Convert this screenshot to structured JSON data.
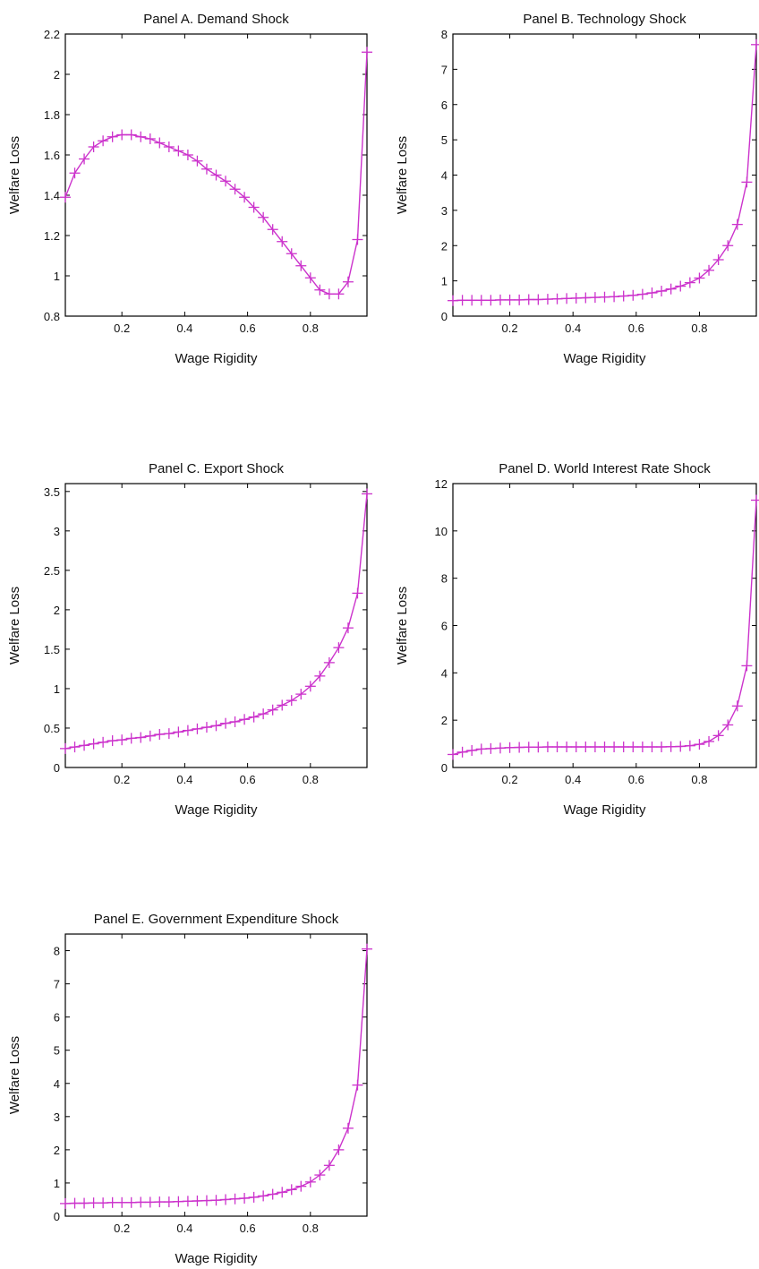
{
  "chart_data": [
    {
      "type": "line",
      "title": "Panel A. Demand Shock",
      "xlabel": "Wage Rigidity",
      "ylabel": "Welfare Loss",
      "xlim": [
        0.02,
        0.98
      ],
      "ylim": [
        0.8,
        2.2
      ],
      "xticks": [
        "0.2",
        "0.4",
        "0.6",
        "0.8"
      ],
      "yticks": [
        "0.8",
        "1",
        "1.2",
        "1.4",
        "1.6",
        "1.8",
        "2",
        "2.2"
      ],
      "grid": false,
      "marker": "plus",
      "color": "#cc33cc",
      "series": [
        {
          "x": [
            0.02,
            0.05,
            0.08,
            0.11,
            0.14,
            0.17,
            0.2,
            0.23,
            0.26,
            0.29,
            0.32,
            0.35,
            0.38,
            0.41,
            0.44,
            0.47,
            0.5,
            0.53,
            0.56,
            0.59,
            0.62,
            0.65,
            0.68,
            0.71,
            0.74,
            0.77,
            0.8,
            0.83,
            0.86,
            0.89,
            0.92,
            0.95,
            0.98
          ],
          "values": [
            1.39,
            1.51,
            1.58,
            1.64,
            1.67,
            1.69,
            1.7,
            1.7,
            1.69,
            1.68,
            1.66,
            1.64,
            1.62,
            1.6,
            1.57,
            1.53,
            1.5,
            1.47,
            1.43,
            1.39,
            1.34,
            1.29,
            1.23,
            1.17,
            1.11,
            1.05,
            0.99,
            0.93,
            0.91,
            0.91,
            0.97,
            1.18,
            2.11
          ]
        }
      ]
    },
    {
      "type": "line",
      "title": "Panel B. Technology Shock",
      "xlabel": "Wage Rigidity",
      "ylabel": "Welfare Loss",
      "xlim": [
        0.02,
        0.98
      ],
      "ylim": [
        0,
        8
      ],
      "xticks": [
        "0.2",
        "0.4",
        "0.6",
        "0.8"
      ],
      "yticks": [
        "0",
        "1",
        "2",
        "3",
        "4",
        "5",
        "6",
        "7",
        "8"
      ],
      "grid": false,
      "marker": "plus",
      "color": "#cc33cc",
      "series": [
        {
          "x": [
            0.02,
            0.05,
            0.08,
            0.11,
            0.14,
            0.17,
            0.2,
            0.23,
            0.26,
            0.29,
            0.32,
            0.35,
            0.38,
            0.41,
            0.44,
            0.47,
            0.5,
            0.53,
            0.56,
            0.59,
            0.62,
            0.65,
            0.68,
            0.71,
            0.74,
            0.77,
            0.8,
            0.83,
            0.86,
            0.89,
            0.92,
            0.95,
            0.98
          ],
          "values": [
            0.44,
            0.45,
            0.45,
            0.45,
            0.45,
            0.46,
            0.46,
            0.46,
            0.47,
            0.47,
            0.48,
            0.49,
            0.5,
            0.51,
            0.52,
            0.53,
            0.54,
            0.55,
            0.57,
            0.59,
            0.62,
            0.66,
            0.71,
            0.77,
            0.85,
            0.95,
            1.08,
            1.3,
            1.6,
            2.0,
            2.6,
            3.8,
            7.7
          ]
        }
      ]
    },
    {
      "type": "line",
      "title": "Panel C. Export Shock",
      "xlabel": "Wage Rigidity",
      "ylabel": "Welfare Loss",
      "xlim": [
        0.02,
        0.98
      ],
      "ylim": [
        0,
        3.6
      ],
      "xticks": [
        "0.2",
        "0.4",
        "0.6",
        "0.8"
      ],
      "yticks": [
        "0",
        "0.5",
        "1",
        "1.5",
        "2",
        "2.5",
        "3",
        "3.5"
      ],
      "grid": false,
      "marker": "plus",
      "color": "#cc33cc",
      "series": [
        {
          "x": [
            0.02,
            0.05,
            0.08,
            0.11,
            0.14,
            0.17,
            0.2,
            0.23,
            0.26,
            0.29,
            0.32,
            0.35,
            0.38,
            0.41,
            0.44,
            0.47,
            0.5,
            0.53,
            0.56,
            0.59,
            0.62,
            0.65,
            0.68,
            0.71,
            0.74,
            0.77,
            0.8,
            0.83,
            0.86,
            0.89,
            0.92,
            0.95,
            0.98
          ],
          "values": [
            0.24,
            0.26,
            0.28,
            0.3,
            0.32,
            0.34,
            0.35,
            0.37,
            0.38,
            0.4,
            0.42,
            0.43,
            0.45,
            0.47,
            0.49,
            0.51,
            0.53,
            0.56,
            0.58,
            0.61,
            0.64,
            0.68,
            0.73,
            0.79,
            0.85,
            0.93,
            1.03,
            1.16,
            1.33,
            1.52,
            1.77,
            2.21,
            3.47
          ]
        }
      ]
    },
    {
      "type": "line",
      "title": "Panel D. World Interest Rate Shock",
      "xlabel": "Wage Rigidity",
      "ylabel": "Welfare Loss",
      "xlim": [
        0.02,
        0.98
      ],
      "ylim": [
        0,
        12
      ],
      "xticks": [
        "0.2",
        "0.4",
        "0.6",
        "0.8"
      ],
      "yticks": [
        "0",
        "2",
        "4",
        "6",
        "8",
        "10",
        "12"
      ],
      "grid": false,
      "marker": "plus",
      "color": "#cc33cc",
      "series": [
        {
          "x": [
            0.02,
            0.05,
            0.08,
            0.11,
            0.14,
            0.17,
            0.2,
            0.23,
            0.26,
            0.29,
            0.32,
            0.35,
            0.38,
            0.41,
            0.44,
            0.47,
            0.5,
            0.53,
            0.56,
            0.59,
            0.62,
            0.65,
            0.68,
            0.71,
            0.74,
            0.77,
            0.8,
            0.83,
            0.86,
            0.89,
            0.92,
            0.95,
            0.98
          ],
          "values": [
            0.55,
            0.65,
            0.72,
            0.78,
            0.8,
            0.82,
            0.84,
            0.85,
            0.86,
            0.86,
            0.87,
            0.87,
            0.87,
            0.87,
            0.87,
            0.87,
            0.87,
            0.87,
            0.87,
            0.87,
            0.87,
            0.87,
            0.87,
            0.88,
            0.89,
            0.92,
            0.98,
            1.1,
            1.35,
            1.8,
            2.6,
            4.3,
            11.3
          ]
        }
      ]
    },
    {
      "type": "line",
      "title": "Panel E. Government Expenditure Shock",
      "xlabel": "Wage Rigidity",
      "ylabel": "Welfare Loss",
      "xlim": [
        0.02,
        0.98
      ],
      "ylim": [
        0,
        8.5
      ],
      "xticks": [
        "0.2",
        "0.4",
        "0.6",
        "0.8"
      ],
      "yticks": [
        "0",
        "1",
        "2",
        "3",
        "4",
        "5",
        "6",
        "7",
        "8"
      ],
      "grid": false,
      "marker": "plus",
      "color": "#cc33cc",
      "series": [
        {
          "x": [
            0.02,
            0.05,
            0.08,
            0.11,
            0.14,
            0.17,
            0.2,
            0.23,
            0.26,
            0.29,
            0.32,
            0.35,
            0.38,
            0.41,
            0.44,
            0.47,
            0.5,
            0.53,
            0.56,
            0.59,
            0.62,
            0.65,
            0.68,
            0.71,
            0.74,
            0.77,
            0.8,
            0.83,
            0.86,
            0.89,
            0.92,
            0.95,
            0.98
          ],
          "values": [
            0.38,
            0.39,
            0.39,
            0.4,
            0.4,
            0.41,
            0.41,
            0.41,
            0.42,
            0.42,
            0.43,
            0.43,
            0.44,
            0.45,
            0.46,
            0.47,
            0.48,
            0.5,
            0.52,
            0.54,
            0.57,
            0.61,
            0.66,
            0.72,
            0.8,
            0.9,
            1.03,
            1.24,
            1.53,
            2.0,
            2.65,
            3.95,
            8.05
          ]
        }
      ]
    }
  ]
}
